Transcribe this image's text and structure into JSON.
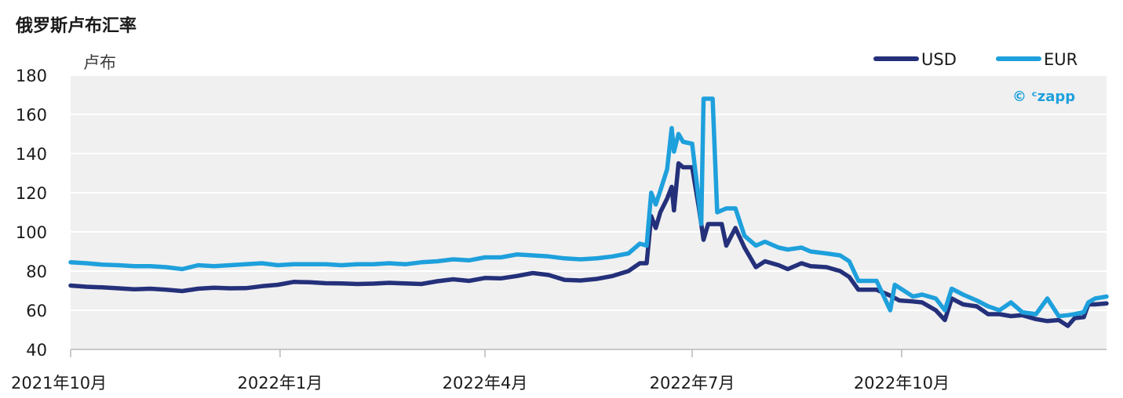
{
  "chart_data": {
    "type": "line",
    "title": "俄罗斯卢布汇率",
    "ylabel": "卢布",
    "ylim": [
      40,
      180
    ],
    "yticks": [
      40,
      60,
      80,
      100,
      120,
      140,
      160,
      180
    ],
    "xlim": [
      "2021-10-01",
      "2022-12-30"
    ],
    "xticks": [
      {
        "date": "2021-10-01",
        "label": "2021年10月"
      },
      {
        "date": "2022-01-01",
        "label": "2022年1月"
      },
      {
        "date": "2022-04-01",
        "label": "2022年4月"
      },
      {
        "date": "2022-07-01",
        "label": "2022年7月"
      },
      {
        "date": "2022-10-01",
        "label": "2022年10月"
      }
    ],
    "grid": "horizontal",
    "legend_position": "top-right",
    "series": [
      {
        "name": "USD",
        "color": "#24307a",
        "points": [
          [
            "2021-10-01",
            72.6
          ],
          [
            "2021-10-08",
            72.0
          ],
          [
            "2021-10-15",
            71.7
          ],
          [
            "2021-10-22",
            71.2
          ],
          [
            "2021-10-29",
            70.7
          ],
          [
            "2021-11-05",
            71.0
          ],
          [
            "2021-11-12",
            70.5
          ],
          [
            "2021-11-19",
            69.8
          ],
          [
            "2021-11-26",
            71.0
          ],
          [
            "2021-12-03",
            71.5
          ],
          [
            "2021-12-10",
            71.2
          ],
          [
            "2021-12-17",
            71.3
          ],
          [
            "2021-12-24",
            72.3
          ],
          [
            "2021-12-31",
            73.0
          ],
          [
            "2022-01-07",
            74.5
          ],
          [
            "2022-01-14",
            74.3
          ],
          [
            "2022-01-21",
            73.8
          ],
          [
            "2022-01-28",
            73.7
          ],
          [
            "2022-02-04",
            73.4
          ],
          [
            "2022-02-11",
            73.6
          ],
          [
            "2022-02-18",
            74.0
          ],
          [
            "2022-02-25",
            73.7
          ],
          [
            "2022-03-04",
            73.4
          ],
          [
            "2022-03-11",
            74.8
          ],
          [
            "2022-03-18",
            75.8
          ],
          [
            "2022-03-25",
            75.0
          ],
          [
            "2022-04-01",
            76.5
          ],
          [
            "2022-04-08",
            76.3
          ],
          [
            "2022-04-15",
            77.5
          ],
          [
            "2022-04-22",
            79.0
          ],
          [
            "2022-04-29",
            78.0
          ],
          [
            "2022-05-06",
            75.5
          ],
          [
            "2022-05-13",
            75.2
          ],
          [
            "2022-05-20",
            76.0
          ],
          [
            "2022-05-27",
            77.5
          ],
          [
            "2022-06-03",
            80.0
          ],
          [
            "2022-06-08",
            84.0
          ],
          [
            "2022-06-11",
            84.0
          ],
          [
            "2022-06-13",
            108.0
          ],
          [
            "2022-06-15",
            102.0
          ],
          [
            "2022-06-17",
            110.0
          ],
          [
            "2022-06-20",
            117.0
          ],
          [
            "2022-06-22",
            123.0
          ],
          [
            "2022-06-23",
            111.0
          ],
          [
            "2022-06-25",
            135.0
          ],
          [
            "2022-06-27",
            133.0
          ],
          [
            "2022-07-01",
            133.0
          ],
          [
            "2022-07-04",
            112.0
          ],
          [
            "2022-07-06",
            96.0
          ],
          [
            "2022-07-08",
            104.0
          ],
          [
            "2022-07-14",
            104.0
          ],
          [
            "2022-07-16",
            93.0
          ],
          [
            "2022-07-20",
            102.0
          ],
          [
            "2022-07-24",
            92.0
          ],
          [
            "2022-07-29",
            82.0
          ],
          [
            "2022-08-02",
            85.0
          ],
          [
            "2022-08-08",
            83.0
          ],
          [
            "2022-08-12",
            81.0
          ],
          [
            "2022-08-18",
            84.0
          ],
          [
            "2022-08-22",
            82.5
          ],
          [
            "2022-08-29",
            82.0
          ],
          [
            "2022-09-04",
            80.0
          ],
          [
            "2022-09-08",
            77.0
          ],
          [
            "2022-09-12",
            70.5
          ],
          [
            "2022-09-20",
            70.5
          ],
          [
            "2022-09-26",
            67.5
          ],
          [
            "2022-09-30",
            65.0
          ],
          [
            "2022-10-06",
            64.5
          ],
          [
            "2022-10-10",
            64.0
          ],
          [
            "2022-10-16",
            60.0
          ],
          [
            "2022-10-20",
            55.0
          ],
          [
            "2022-10-23",
            66.0
          ],
          [
            "2022-10-28",
            63.0
          ],
          [
            "2022-11-03",
            62.0
          ],
          [
            "2022-11-08",
            58.0
          ],
          [
            "2022-11-13",
            58.0
          ],
          [
            "2022-11-18",
            57.0
          ],
          [
            "2022-11-23",
            57.5
          ],
          [
            "2022-11-29",
            55.5
          ],
          [
            "2022-12-04",
            54.5
          ],
          [
            "2022-12-09",
            55.0
          ],
          [
            "2022-12-13",
            52.0
          ],
          [
            "2022-12-16",
            56.0
          ],
          [
            "2022-12-20",
            56.5
          ],
          [
            "2022-12-22",
            63.0
          ],
          [
            "2022-12-25",
            63.0
          ],
          [
            "2022-12-30",
            63.5
          ]
        ]
      },
      {
        "name": "EUR",
        "color": "#1ea0dc",
        "points": [
          [
            "2021-10-01",
            84.5
          ],
          [
            "2021-10-08",
            84.0
          ],
          [
            "2021-10-15",
            83.3
          ],
          [
            "2021-10-22",
            83.0
          ],
          [
            "2021-10-29",
            82.5
          ],
          [
            "2021-11-05",
            82.5
          ],
          [
            "2021-11-12",
            82.0
          ],
          [
            "2021-11-19",
            81.0
          ],
          [
            "2021-11-26",
            83.0
          ],
          [
            "2021-12-03",
            82.5
          ],
          [
            "2021-12-10",
            83.0
          ],
          [
            "2021-12-17",
            83.5
          ],
          [
            "2021-12-24",
            84.0
          ],
          [
            "2021-12-31",
            83.0
          ],
          [
            "2022-01-07",
            83.5
          ],
          [
            "2022-01-14",
            83.5
          ],
          [
            "2022-01-21",
            83.5
          ],
          [
            "2022-01-28",
            83.0
          ],
          [
            "2022-02-04",
            83.5
          ],
          [
            "2022-02-11",
            83.5
          ],
          [
            "2022-02-18",
            84.0
          ],
          [
            "2022-02-25",
            83.5
          ],
          [
            "2022-03-04",
            84.5
          ],
          [
            "2022-03-11",
            85.0
          ],
          [
            "2022-03-18",
            86.0
          ],
          [
            "2022-03-25",
            85.5
          ],
          [
            "2022-04-01",
            87.0
          ],
          [
            "2022-04-08",
            87.0
          ],
          [
            "2022-04-15",
            88.5
          ],
          [
            "2022-04-22",
            88.0
          ],
          [
            "2022-04-29",
            87.5
          ],
          [
            "2022-05-06",
            86.5
          ],
          [
            "2022-05-13",
            86.0
          ],
          [
            "2022-05-20",
            86.5
          ],
          [
            "2022-05-27",
            87.5
          ],
          [
            "2022-06-03",
            89.0
          ],
          [
            "2022-06-08",
            94.0
          ],
          [
            "2022-06-11",
            93.0
          ],
          [
            "2022-06-13",
            120.0
          ],
          [
            "2022-06-15",
            114.0
          ],
          [
            "2022-06-17",
            121.0
          ],
          [
            "2022-06-20",
            132.0
          ],
          [
            "2022-06-22",
            153.0
          ],
          [
            "2022-06-23",
            141.0
          ],
          [
            "2022-06-25",
            150.0
          ],
          [
            "2022-06-27",
            146.0
          ],
          [
            "2022-07-01",
            145.0
          ],
          [
            "2022-07-04",
            115.0
          ],
          [
            "2022-07-05",
            104.0
          ],
          [
            "2022-07-06",
            168.0
          ],
          [
            "2022-07-08",
            168.0
          ],
          [
            "2022-07-10",
            168.0
          ],
          [
            "2022-07-12",
            110.0
          ],
          [
            "2022-07-16",
            112.0
          ],
          [
            "2022-07-20",
            112.0
          ],
          [
            "2022-07-24",
            98.0
          ],
          [
            "2022-07-29",
            93.0
          ],
          [
            "2022-08-02",
            95.0
          ],
          [
            "2022-08-08",
            92.0
          ],
          [
            "2022-08-12",
            91.0
          ],
          [
            "2022-08-18",
            92.0
          ],
          [
            "2022-08-22",
            90.0
          ],
          [
            "2022-08-29",
            89.0
          ],
          [
            "2022-09-04",
            88.0
          ],
          [
            "2022-09-08",
            85.0
          ],
          [
            "2022-09-12",
            75.0
          ],
          [
            "2022-09-20",
            75.0
          ],
          [
            "2022-09-26",
            60.0
          ],
          [
            "2022-09-28",
            73.0
          ],
          [
            "2022-10-06",
            67.0
          ],
          [
            "2022-10-10",
            68.0
          ],
          [
            "2022-10-16",
            66.0
          ],
          [
            "2022-10-20",
            60.0
          ],
          [
            "2022-10-23",
            71.0
          ],
          [
            "2022-10-28",
            68.0
          ],
          [
            "2022-11-03",
            65.0
          ],
          [
            "2022-11-08",
            62.0
          ],
          [
            "2022-11-13",
            60.0
          ],
          [
            "2022-11-18",
            64.0
          ],
          [
            "2022-11-23",
            59.0
          ],
          [
            "2022-11-29",
            58.0
          ],
          [
            "2022-12-04",
            66.0
          ],
          [
            "2022-12-09",
            57.0
          ],
          [
            "2022-12-13",
            57.5
          ],
          [
            "2022-12-16",
            58.0
          ],
          [
            "2022-12-20",
            59.0
          ],
          [
            "2022-12-22",
            64.0
          ],
          [
            "2022-12-25",
            66.0
          ],
          [
            "2022-12-30",
            67.0
          ]
        ]
      }
    ]
  },
  "watermark": {
    "text": "© ᶜzapp",
    "color": "#1ea0dc"
  }
}
